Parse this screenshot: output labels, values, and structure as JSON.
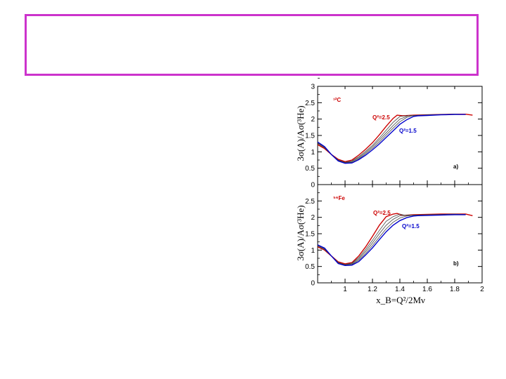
{
  "slide": {
    "title_box_color": "#cc33cc"
  },
  "chart_data": {
    "type": "line",
    "xlabel": "x_B=Q²/2Mν",
    "xlim": [
      0.8,
      2.0
    ],
    "x_ticks": [
      "1",
      "1.2",
      "1.4",
      "1.6",
      "1.8",
      "2"
    ],
    "ylabel_top": "3σ(A)/Aσ(³He)",
    "ylabel_bottom": "3σ(A)/Aσ(³He)",
    "grid": false,
    "colors": {
      "high_q2": "#cc0000",
      "mid_q2": "#444444",
      "low_q2": "#0000cc"
    },
    "panels": [
      {
        "nucleus": "¹²C",
        "panel_label": "a)",
        "q2_high_label": "Q²=2.5",
        "q2_low_label": "Q²=1.5",
        "ylim": [
          0,
          3
        ],
        "y_ticks": [
          "0",
          "0.5",
          "1",
          "1.5",
          "2",
          "2.5",
          "3"
        ],
        "series": [
          {
            "q2": 2.5,
            "color": "#cc0000",
            "x": [
              0.8,
              0.85,
              0.9,
              0.95,
              1.0,
              1.05,
              1.1,
              1.15,
              1.2,
              1.25,
              1.3,
              1.35,
              1.38,
              1.42,
              1.5,
              1.6,
              1.7,
              1.8,
              1.88,
              1.93
            ],
            "y": [
              1.22,
              1.1,
              0.92,
              0.77,
              0.7,
              0.75,
              0.9,
              1.08,
              1.28,
              1.52,
              1.78,
              2.02,
              2.12,
              2.1,
              2.12,
              2.13,
              2.14,
              2.15,
              2.15,
              2.12
            ]
          },
          {
            "q2": 2.25,
            "color": "#444444",
            "x": [
              0.8,
              0.85,
              0.9,
              0.95,
              1.0,
              1.05,
              1.1,
              1.15,
              1.2,
              1.25,
              1.3,
              1.35,
              1.4,
              1.44,
              1.5,
              1.6,
              1.7,
              1.8,
              1.88
            ],
            "y": [
              1.25,
              1.12,
              0.92,
              0.75,
              0.68,
              0.72,
              0.85,
              1.02,
              1.2,
              1.42,
              1.66,
              1.9,
              2.08,
              2.1,
              2.11,
              2.13,
              2.14,
              2.15,
              2.14
            ]
          },
          {
            "q2": 2.0,
            "color": "#444444",
            "x": [
              0.8,
              0.85,
              0.9,
              0.95,
              1.0,
              1.05,
              1.1,
              1.15,
              1.2,
              1.25,
              1.3,
              1.35,
              1.4,
              1.46,
              1.5,
              1.6,
              1.7,
              1.8,
              1.88
            ],
            "y": [
              1.27,
              1.14,
              0.92,
              0.74,
              0.67,
              0.7,
              0.82,
              0.98,
              1.16,
              1.36,
              1.58,
              1.8,
              2.0,
              2.1,
              2.11,
              2.13,
              2.14,
              2.15,
              2.14
            ]
          },
          {
            "q2": 1.75,
            "color": "#444444",
            "x": [
              0.8,
              0.85,
              0.9,
              0.95,
              1.0,
              1.05,
              1.1,
              1.15,
              1.2,
              1.25,
              1.3,
              1.35,
              1.4,
              1.45,
              1.49,
              1.55,
              1.6,
              1.7,
              1.8,
              1.88
            ],
            "y": [
              1.28,
              1.15,
              0.92,
              0.73,
              0.66,
              0.68,
              0.79,
              0.94,
              1.11,
              1.3,
              1.51,
              1.72,
              1.92,
              2.05,
              2.1,
              2.11,
              2.12,
              2.13,
              2.15,
              2.14
            ]
          },
          {
            "q2": 1.5,
            "color": "#0000cc",
            "x": [
              0.8,
              0.85,
              0.9,
              0.95,
              1.0,
              1.05,
              1.1,
              1.15,
              1.2,
              1.25,
              1.3,
              1.35,
              1.4,
              1.45,
              1.5,
              1.53,
              1.6,
              1.7,
              1.8,
              1.88
            ],
            "y": [
              1.3,
              1.16,
              0.92,
              0.72,
              0.65,
              0.66,
              0.76,
              0.9,
              1.06,
              1.24,
              1.44,
              1.64,
              1.84,
              1.98,
              2.08,
              2.1,
              2.11,
              2.13,
              2.14,
              2.14
            ]
          }
        ]
      },
      {
        "nucleus": "⁵⁶Fe",
        "panel_label": "b)",
        "q2_high_label": "Q²=2.5",
        "q2_low_label": "Q²=1.5",
        "ylim": [
          0,
          3
        ],
        "y_ticks": [
          "0",
          "0.5",
          "1",
          "1.5",
          "2",
          "2.5"
        ],
        "series": [
          {
            "q2": 2.5,
            "color": "#cc0000",
            "x": [
              0.8,
              0.85,
              0.9,
              0.95,
              1.0,
              1.05,
              1.1,
              1.15,
              1.2,
              1.25,
              1.3,
              1.35,
              1.38,
              1.42,
              1.5,
              1.6,
              1.7,
              1.8,
              1.88,
              1.93
            ],
            "y": [
              1.1,
              1.0,
              0.82,
              0.64,
              0.58,
              0.62,
              0.82,
              1.1,
              1.42,
              1.76,
              2.02,
              2.1,
              2.12,
              2.06,
              2.08,
              2.09,
              2.1,
              2.1,
              2.1,
              2.05
            ]
          },
          {
            "q2": 2.25,
            "color": "#444444",
            "x": [
              0.8,
              0.85,
              0.9,
              0.95,
              1.0,
              1.05,
              1.1,
              1.15,
              1.2,
              1.25,
              1.3,
              1.35,
              1.4,
              1.44,
              1.5,
              1.6,
              1.7,
              1.8,
              1.88
            ],
            "y": [
              1.12,
              1.02,
              0.82,
              0.62,
              0.56,
              0.6,
              0.77,
              1.02,
              1.3,
              1.6,
              1.88,
              2.02,
              2.1,
              2.06,
              2.07,
              2.08,
              2.09,
              2.1,
              2.09
            ]
          },
          {
            "q2": 2.0,
            "color": "#444444",
            "x": [
              0.8,
              0.85,
              0.9,
              0.95,
              1.0,
              1.05,
              1.1,
              1.15,
              1.2,
              1.25,
              1.3,
              1.35,
              1.4,
              1.46,
              1.5,
              1.6,
              1.7,
              1.8,
              1.88
            ],
            "y": [
              1.14,
              1.04,
              0.82,
              0.61,
              0.55,
              0.58,
              0.73,
              0.96,
              1.22,
              1.5,
              1.76,
              1.94,
              2.05,
              2.07,
              2.06,
              2.07,
              2.08,
              2.09,
              2.09
            ]
          },
          {
            "q2": 1.75,
            "color": "#444444",
            "x": [
              0.8,
              0.85,
              0.9,
              0.95,
              1.0,
              1.05,
              1.1,
              1.15,
              1.2,
              1.25,
              1.3,
              1.35,
              1.4,
              1.45,
              1.49,
              1.55,
              1.6,
              1.7,
              1.8,
              1.88
            ],
            "y": [
              1.15,
              1.05,
              0.82,
              0.6,
              0.54,
              0.56,
              0.69,
              0.9,
              1.14,
              1.4,
              1.65,
              1.85,
              1.98,
              2.04,
              2.06,
              2.06,
              2.07,
              2.08,
              2.09,
              2.09
            ]
          },
          {
            "q2": 1.5,
            "color": "#0000cc",
            "x": [
              0.8,
              0.85,
              0.9,
              0.95,
              1.0,
              1.05,
              1.1,
              1.15,
              1.2,
              1.25,
              1.3,
              1.35,
              1.4,
              1.45,
              1.5,
              1.53,
              1.6,
              1.7,
              1.8,
              1.88
            ],
            "y": [
              1.16,
              1.06,
              0.82,
              0.59,
              0.53,
              0.54,
              0.65,
              0.85,
              1.07,
              1.32,
              1.56,
              1.76,
              1.9,
              1.99,
              2.04,
              2.05,
              2.06,
              2.07,
              2.08,
              2.08
            ]
          }
        ]
      }
    ]
  }
}
